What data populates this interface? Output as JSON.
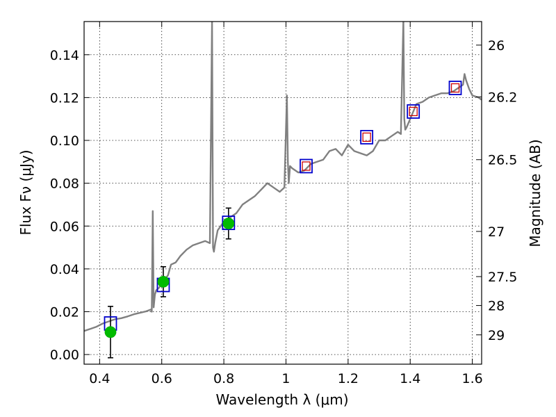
{
  "chart_data": {
    "type": "line",
    "xlabel": "Wavelength λ (μm)",
    "ylabel": "Flux Fν (μJy)",
    "y2label": "Magnitude (AB)",
    "xlim": [
      0.35,
      1.63
    ],
    "ylim": [
      -0.0045,
      0.1555
    ],
    "grid": true,
    "x_ticks": [
      0.4,
      0.6,
      0.8,
      1.0,
      1.2,
      1.4,
      1.6
    ],
    "x_tick_labels": [
      "0.4",
      "0.6",
      "0.8",
      "1",
      "1.2",
      "1.4",
      "1.6"
    ],
    "y_ticks": [
      0.0,
      0.02,
      0.04,
      0.06,
      0.08,
      0.1,
      0.12,
      0.14
    ],
    "y_tick_labels": [
      "0.00",
      "0.02",
      "0.04",
      "0.06",
      "0.08",
      "0.10",
      "0.12",
      "0.14"
    ],
    "y2_ticks": [
      {
        "label": "26",
        "flux": 0.1445
      },
      {
        "label": "26.2",
        "flux": 0.1203
      },
      {
        "label": "26.5",
        "flux": 0.091
      },
      {
        "label": "27",
        "flux": 0.0575
      },
      {
        "label": "27.5",
        "flux": 0.0364
      },
      {
        "label": "28",
        "flux": 0.0229
      },
      {
        "label": "29",
        "flux": 0.0092
      }
    ],
    "colors": {
      "spectrum": "#808080",
      "model_square": "#0000cc",
      "inner_square": "#cc0000",
      "observed": "#00bb00",
      "errorbar": "#000000"
    },
    "spectrum": {
      "x": [
        0.35,
        0.37,
        0.39,
        0.41,
        0.43,
        0.45,
        0.47,
        0.49,
        0.51,
        0.53,
        0.55,
        0.565,
        0.568,
        0.571,
        0.574,
        0.578,
        0.582,
        0.59,
        0.6,
        0.62,
        0.63,
        0.645,
        0.66,
        0.68,
        0.7,
        0.72,
        0.74,
        0.755,
        0.762,
        0.765,
        0.768,
        0.772,
        0.78,
        0.79,
        0.8,
        0.82,
        0.84,
        0.86,
        0.88,
        0.9,
        0.92,
        0.94,
        0.96,
        0.98,
        0.995,
        1.003,
        1.006,
        1.009,
        1.013,
        1.02,
        1.04,
        1.06,
        1.08,
        1.1,
        1.12,
        1.14,
        1.16,
        1.18,
        1.2,
        1.22,
        1.24,
        1.26,
        1.28,
        1.3,
        1.32,
        1.34,
        1.36,
        1.37,
        1.378,
        1.381,
        1.384,
        1.388,
        1.4,
        1.42,
        1.44,
        1.46,
        1.48,
        1.5,
        1.52,
        1.54,
        1.56,
        1.57,
        1.575,
        1.58,
        1.59,
        1.6,
        1.62,
        1.63
      ],
      "y": [
        0.011,
        0.012,
        0.013,
        0.0145,
        0.0155,
        0.0165,
        0.017,
        0.0178,
        0.0188,
        0.0195,
        0.0202,
        0.021,
        0.02,
        0.067,
        0.022,
        0.028,
        0.03,
        0.031,
        0.033,
        0.037,
        0.042,
        0.043,
        0.046,
        0.049,
        0.051,
        0.052,
        0.053,
        0.052,
        0.156,
        0.05,
        0.048,
        0.052,
        0.058,
        0.06,
        0.062,
        0.064,
        0.066,
        0.07,
        0.072,
        0.074,
        0.077,
        0.08,
        0.078,
        0.076,
        0.078,
        0.121,
        0.09,
        0.08,
        0.088,
        0.087,
        0.085,
        0.086,
        0.089,
        0.09,
        0.091,
        0.095,
        0.096,
        0.093,
        0.098,
        0.095,
        0.094,
        0.093,
        0.095,
        0.1,
        0.1,
        0.102,
        0.104,
        0.103,
        0.156,
        0.11,
        0.105,
        0.106,
        0.11,
        0.117,
        0.118,
        0.12,
        0.121,
        0.122,
        0.122,
        0.123,
        0.125,
        0.126,
        0.131,
        0.128,
        0.124,
        0.121,
        0.12,
        0.119
      ]
    },
    "model_points": [
      {
        "x": 0.435,
        "y": 0.0145,
        "inner": false
      },
      {
        "x": 0.605,
        "y": 0.0325,
        "inner": false
      },
      {
        "x": 0.815,
        "y": 0.0615,
        "inner": false
      },
      {
        "x": 1.065,
        "y": 0.088,
        "inner": true
      },
      {
        "x": 1.26,
        "y": 0.1015,
        "inner": true
      },
      {
        "x": 1.41,
        "y": 0.1135,
        "inner": true
      },
      {
        "x": 1.545,
        "y": 0.1245,
        "inner": true
      }
    ],
    "observed": [
      {
        "x": 0.435,
        "y": 0.0105,
        "err": 0.012
      },
      {
        "x": 0.605,
        "y": 0.034,
        "err": 0.007
      },
      {
        "x": 0.815,
        "y": 0.0612,
        "err": 0.0072
      }
    ]
  }
}
